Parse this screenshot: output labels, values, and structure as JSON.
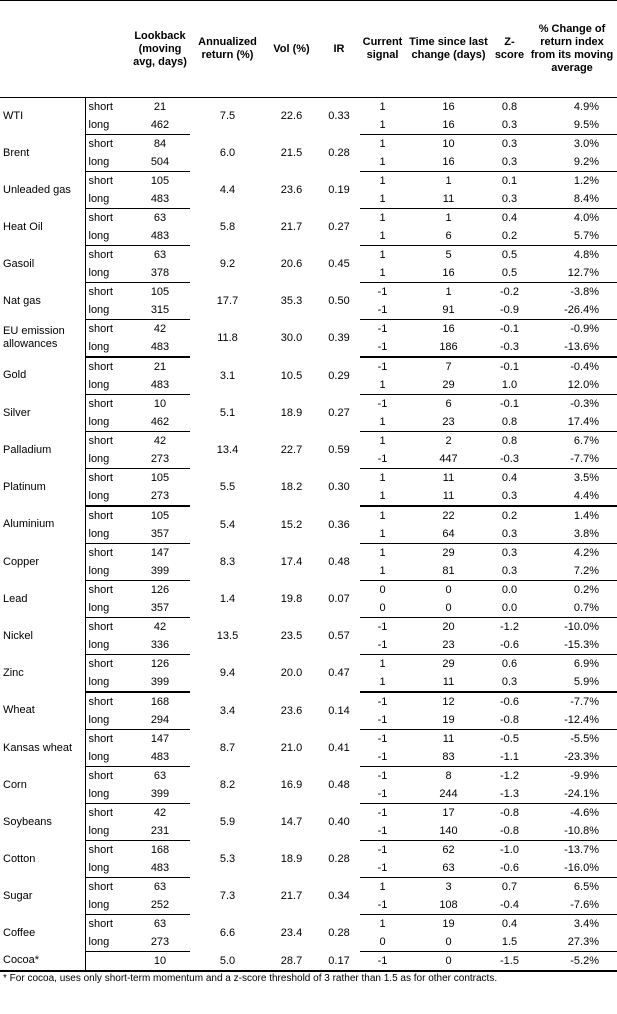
{
  "table": {
    "headers": [
      "Lookback (moving avg, days)",
      "Annualized return (%)",
      "Vol (%)",
      "IR",
      "Current signal",
      "Time since last change (days)",
      "Z-score",
      "% Change of return index from its moving average"
    ],
    "groups": [
      {
        "rows": [
          {
            "name": "WTI",
            "ret": "7.5",
            "vol": "22.6",
            "ir": "0.33",
            "legs": [
              {
                "horizon": "short",
                "lookback": "21",
                "signal": "1",
                "time": "16",
                "z": "0.8",
                "pct": "4.9%"
              },
              {
                "horizon": "long",
                "lookback": "462",
                "signal": "1",
                "time": "16",
                "z": "0.3",
                "pct": "9.5%"
              }
            ]
          },
          {
            "name": "Brent",
            "ret": "6.0",
            "vol": "21.5",
            "ir": "0.28",
            "legs": [
              {
                "horizon": "short",
                "lookback": "84",
                "signal": "1",
                "time": "10",
                "z": "0.3",
                "pct": "3.0%"
              },
              {
                "horizon": "long",
                "lookback": "504",
                "signal": "1",
                "time": "16",
                "z": "0.3",
                "pct": "9.2%"
              }
            ]
          },
          {
            "name": "Unleaded gas",
            "ret": "4.4",
            "vol": "23.6",
            "ir": "0.19",
            "legs": [
              {
                "horizon": "short",
                "lookback": "105",
                "signal": "1",
                "time": "1",
                "z": "0.1",
                "pct": "1.2%"
              },
              {
                "horizon": "long",
                "lookback": "483",
                "signal": "1",
                "time": "11",
                "z": "0.3",
                "pct": "8.4%"
              }
            ]
          },
          {
            "name": "Heat Oil",
            "ret": "5.8",
            "vol": "21.7",
            "ir": "0.27",
            "legs": [
              {
                "horizon": "short",
                "lookback": "63",
                "signal": "1",
                "time": "1",
                "z": "0.4",
                "pct": "4.0%"
              },
              {
                "horizon": "long",
                "lookback": "483",
                "signal": "1",
                "time": "6",
                "z": "0.2",
                "pct": "5.7%"
              }
            ]
          },
          {
            "name": "Gasoil",
            "ret": "9.2",
            "vol": "20.6",
            "ir": "0.45",
            "legs": [
              {
                "horizon": "short",
                "lookback": "63",
                "signal": "1",
                "time": "5",
                "z": "0.5",
                "pct": "4.8%"
              },
              {
                "horizon": "long",
                "lookback": "378",
                "signal": "1",
                "time": "16",
                "z": "0.5",
                "pct": "12.7%"
              }
            ]
          },
          {
            "name": "Nat gas",
            "ret": "17.7",
            "vol": "35.3",
            "ir": "0.50",
            "legs": [
              {
                "horizon": "short",
                "lookback": "105",
                "signal": "-1",
                "time": "1",
                "z": "-0.2",
                "pct": "-3.8%"
              },
              {
                "horizon": "long",
                "lookback": "315",
                "signal": "-1",
                "time": "91",
                "z": "-0.9",
                "pct": "-26.4%"
              }
            ]
          },
          {
            "name": "EU emission allowances",
            "ret": "11.8",
            "vol": "30.0",
            "ir": "0.39",
            "legs": [
              {
                "horizon": "short",
                "lookback": "42",
                "signal": "-1",
                "time": "16",
                "z": "-0.1",
                "pct": "-0.9%"
              },
              {
                "horizon": "long",
                "lookback": "483",
                "signal": "-1",
                "time": "186",
                "z": "-0.3",
                "pct": "-13.6%"
              }
            ]
          }
        ]
      },
      {
        "rows": [
          {
            "name": "Gold",
            "ret": "3.1",
            "vol": "10.5",
            "ir": "0.29",
            "legs": [
              {
                "horizon": "short",
                "lookback": "21",
                "signal": "-1",
                "time": "7",
                "z": "-0.1",
                "pct": "-0.4%"
              },
              {
                "horizon": "long",
                "lookback": "483",
                "signal": "1",
                "time": "29",
                "z": "1.0",
                "pct": "12.0%"
              }
            ]
          },
          {
            "name": "Silver",
            "ret": "5.1",
            "vol": "18.9",
            "ir": "0.27",
            "legs": [
              {
                "horizon": "short",
                "lookback": "10",
                "signal": "-1",
                "time": "6",
                "z": "-0.1",
                "pct": "-0.3%"
              },
              {
                "horizon": "long",
                "lookback": "462",
                "signal": "1",
                "time": "23",
                "z": "0.8",
                "pct": "17.4%"
              }
            ]
          },
          {
            "name": "Palladium",
            "ret": "13.4",
            "vol": "22.7",
            "ir": "0.59",
            "legs": [
              {
                "horizon": "short",
                "lookback": "42",
                "signal": "1",
                "time": "2",
                "z": "0.8",
                "pct": "6.7%"
              },
              {
                "horizon": "long",
                "lookback": "273",
                "signal": "-1",
                "time": "447",
                "z": "-0.3",
                "pct": "-7.7%"
              }
            ]
          },
          {
            "name": "Platinum",
            "ret": "5.5",
            "vol": "18.2",
            "ir": "0.30",
            "legs": [
              {
                "horizon": "short",
                "lookback": "105",
                "signal": "1",
                "time": "11",
                "z": "0.4",
                "pct": "3.5%"
              },
              {
                "horizon": "long",
                "lookback": "273",
                "signal": "1",
                "time": "11",
                "z": "0.3",
                "pct": "4.4%"
              }
            ]
          }
        ]
      },
      {
        "rows": [
          {
            "name": "Aluminium",
            "ret": "5.4",
            "vol": "15.2",
            "ir": "0.36",
            "legs": [
              {
                "horizon": "short",
                "lookback": "105",
                "signal": "1",
                "time": "22",
                "z": "0.2",
                "pct": "1.4%"
              },
              {
                "horizon": "long",
                "lookback": "357",
                "signal": "1",
                "time": "64",
                "z": "0.3",
                "pct": "3.8%"
              }
            ]
          },
          {
            "name": "Copper",
            "ret": "8.3",
            "vol": "17.4",
            "ir": "0.48",
            "legs": [
              {
                "horizon": "short",
                "lookback": "147",
                "signal": "1",
                "time": "29",
                "z": "0.3",
                "pct": "4.2%"
              },
              {
                "horizon": "long",
                "lookback": "399",
                "signal": "1",
                "time": "81",
                "z": "0.3",
                "pct": "7.2%"
              }
            ]
          },
          {
            "name": "Lead",
            "ret": "1.4",
            "vol": "19.8",
            "ir": "0.07",
            "legs": [
              {
                "horizon": "short",
                "lookback": "126",
                "signal": "0",
                "time": "0",
                "z": "0.0",
                "pct": "0.2%"
              },
              {
                "horizon": "long",
                "lookback": "357",
                "signal": "0",
                "time": "0",
                "z": "0.0",
                "pct": "0.7%"
              }
            ]
          },
          {
            "name": "Nickel",
            "ret": "13.5",
            "vol": "23.5",
            "ir": "0.57",
            "legs": [
              {
                "horizon": "short",
                "lookback": "42",
                "signal": "-1",
                "time": "20",
                "z": "-1.2",
                "pct": "-10.0%"
              },
              {
                "horizon": "long",
                "lookback": "336",
                "signal": "-1",
                "time": "23",
                "z": "-0.6",
                "pct": "-15.3%"
              }
            ]
          },
          {
            "name": "Zinc",
            "ret": "9.4",
            "vol": "20.0",
            "ir": "0.47",
            "legs": [
              {
                "horizon": "short",
                "lookback": "126",
                "signal": "1",
                "time": "29",
                "z": "0.6",
                "pct": "6.9%"
              },
              {
                "horizon": "long",
                "lookback": "399",
                "signal": "1",
                "time": "11",
                "z": "0.3",
                "pct": "5.9%"
              }
            ]
          }
        ]
      },
      {
        "rows": [
          {
            "name": "Wheat",
            "ret": "3.4",
            "vol": "23.6",
            "ir": "0.14",
            "legs": [
              {
                "horizon": "short",
                "lookback": "168",
                "signal": "-1",
                "time": "12",
                "z": "-0.6",
                "pct": "-7.7%"
              },
              {
                "horizon": "long",
                "lookback": "294",
                "signal": "-1",
                "time": "19",
                "z": "-0.8",
                "pct": "-12.4%"
              }
            ]
          },
          {
            "name": "Kansas wheat",
            "ret": "8.7",
            "vol": "21.0",
            "ir": "0.41",
            "legs": [
              {
                "horizon": "short",
                "lookback": "147",
                "signal": "-1",
                "time": "11",
                "z": "-0.5",
                "pct": "-5.5%"
              },
              {
                "horizon": "long",
                "lookback": "483",
                "signal": "-1",
                "time": "83",
                "z": "-1.1",
                "pct": "-23.3%"
              }
            ]
          },
          {
            "name": "Corn",
            "ret": "8.2",
            "vol": "16.9",
            "ir": "0.48",
            "legs": [
              {
                "horizon": "short",
                "lookback": "63",
                "signal": "-1",
                "time": "8",
                "z": "-1.2",
                "pct": "-9.9%"
              },
              {
                "horizon": "long",
                "lookback": "399",
                "signal": "-1",
                "time": "244",
                "z": "-1.3",
                "pct": "-24.1%"
              }
            ]
          },
          {
            "name": "Soybeans",
            "ret": "5.9",
            "vol": "14.7",
            "ir": "0.40",
            "legs": [
              {
                "horizon": "short",
                "lookback": "42",
                "signal": "-1",
                "time": "17",
                "z": "-0.8",
                "pct": "-4.6%"
              },
              {
                "horizon": "long",
                "lookback": "231",
                "signal": "-1",
                "time": "140",
                "z": "-0.8",
                "pct": "-10.8%"
              }
            ]
          },
          {
            "name": "Cotton",
            "ret": "5.3",
            "vol": "18.9",
            "ir": "0.28",
            "legs": [
              {
                "horizon": "short",
                "lookback": "168",
                "signal": "-1",
                "time": "62",
                "z": "-1.0",
                "pct": "-13.7%"
              },
              {
                "horizon": "long",
                "lookback": "483",
                "signal": "-1",
                "time": "63",
                "z": "-0.6",
                "pct": "-16.0%"
              }
            ]
          },
          {
            "name": "Sugar",
            "ret": "7.3",
            "vol": "21.7",
            "ir": "0.34",
            "legs": [
              {
                "horizon": "short",
                "lookback": "63",
                "signal": "1",
                "time": "3",
                "z": "0.7",
                "pct": "6.5%"
              },
              {
                "horizon": "long",
                "lookback": "252",
                "signal": "-1",
                "time": "108",
                "z": "-0.4",
                "pct": "-7.6%"
              }
            ]
          },
          {
            "name": "Coffee",
            "ret": "6.6",
            "vol": "23.4",
            "ir": "0.28",
            "legs": [
              {
                "horizon": "short",
                "lookback": "63",
                "signal": "1",
                "time": "19",
                "z": "0.4",
                "pct": "3.4%"
              },
              {
                "horizon": "long",
                "lookback": "273",
                "signal": "0",
                "time": "0",
                "z": "1.5",
                "pct": "27.3%"
              }
            ]
          },
          {
            "name": "Cocoa*",
            "ret": "5.0",
            "vol": "28.7",
            "ir": "0.17",
            "legs": [
              {
                "lookback": "10",
                "signal": "-1",
                "time": "0",
                "z": "-1.5",
                "pct": "-5.2%"
              }
            ]
          }
        ]
      }
    ],
    "footnote": "* For cocoa, uses only short-term momentum and a z-score threshold of 3 rather than 1.5 as for other contracts."
  }
}
